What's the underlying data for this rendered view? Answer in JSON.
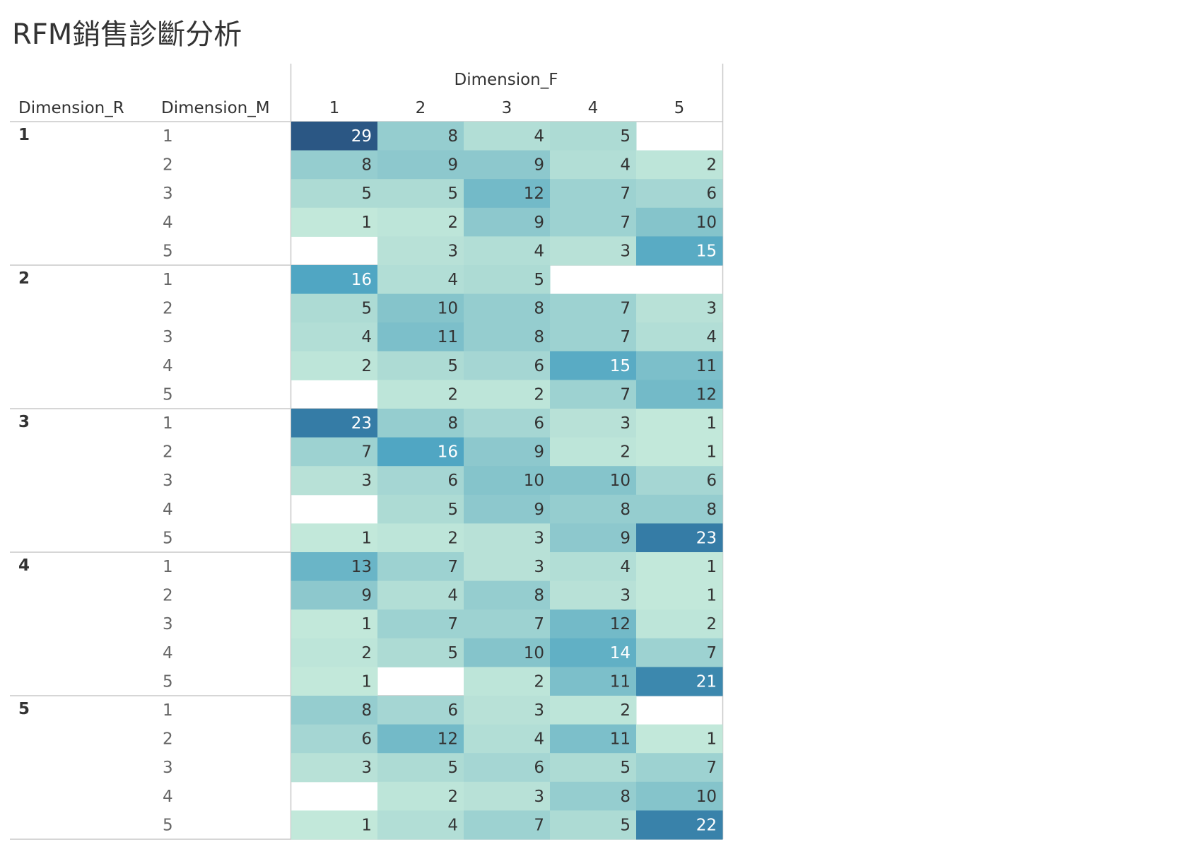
{
  "title": "RFM銷售診斷分析",
  "chart_data": {
    "type": "heatmap",
    "title": "RFM銷售診斷分析",
    "row_header_outer": "Dimension_R",
    "row_header_inner": "Dimension_M",
    "column_group_label": "Dimension_F",
    "columns": [
      "1",
      "2",
      "3",
      "4",
      "5"
    ],
    "outer_rows": [
      "1",
      "2",
      "3",
      "4",
      "5"
    ],
    "inner_rows": [
      "1",
      "2",
      "3",
      "4",
      "5"
    ],
    "value_range": [
      1,
      29
    ],
    "colors": {
      "low": "#c2e8da",
      "high": "#2b5784",
      "label_dark": "#333333",
      "label_light": "#ffffff",
      "grid": "#c8c8c8"
    },
    "cells": [
      [
        [
          29,
          8,
          4,
          5,
          null
        ],
        [
          8,
          9,
          9,
          4,
          2
        ],
        [
          5,
          5,
          12,
          7,
          6
        ],
        [
          1,
          2,
          9,
          7,
          10
        ],
        [
          null,
          3,
          4,
          3,
          15
        ]
      ],
      [
        [
          16,
          4,
          5,
          null,
          null
        ],
        [
          5,
          10,
          8,
          7,
          3
        ],
        [
          4,
          11,
          8,
          7,
          4
        ],
        [
          2,
          5,
          6,
          15,
          11
        ],
        [
          null,
          2,
          2,
          7,
          12
        ]
      ],
      [
        [
          23,
          8,
          6,
          3,
          1
        ],
        [
          7,
          16,
          9,
          2,
          1
        ],
        [
          3,
          6,
          10,
          10,
          6
        ],
        [
          null,
          5,
          9,
          8,
          8
        ],
        [
          1,
          2,
          3,
          9,
          23
        ]
      ],
      [
        [
          13,
          7,
          3,
          4,
          1
        ],
        [
          9,
          4,
          8,
          3,
          1
        ],
        [
          1,
          7,
          7,
          12,
          2
        ],
        [
          2,
          5,
          10,
          14,
          7
        ],
        [
          1,
          null,
          2,
          11,
          21
        ]
      ],
      [
        [
          8,
          6,
          3,
          2,
          null
        ],
        [
          6,
          12,
          4,
          11,
          1
        ],
        [
          3,
          5,
          6,
          5,
          7
        ],
        [
          null,
          2,
          3,
          8,
          10
        ],
        [
          1,
          4,
          7,
          5,
          22
        ]
      ]
    ]
  }
}
